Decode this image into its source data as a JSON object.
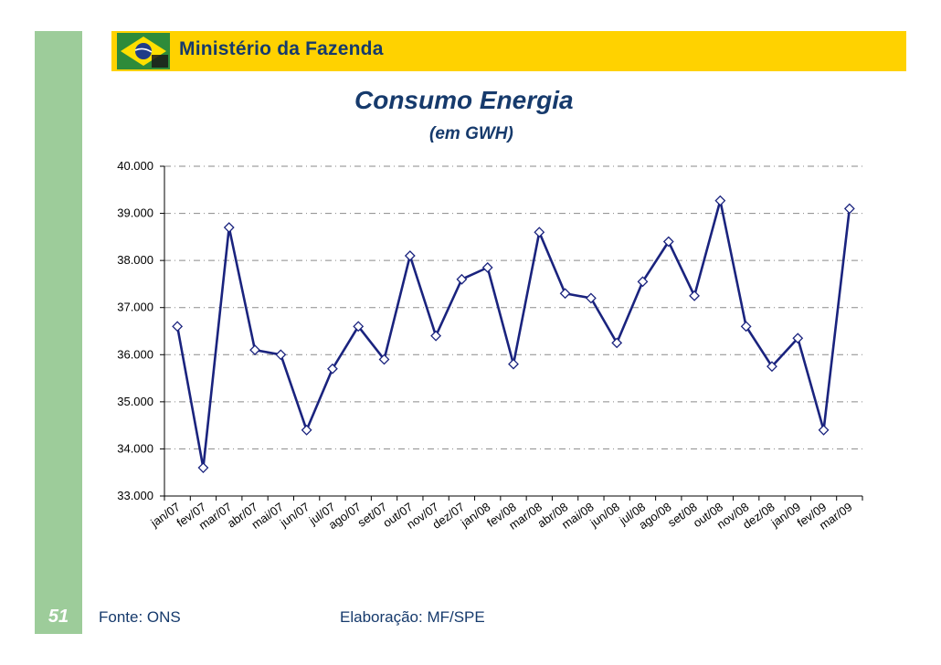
{
  "header": {
    "ministry": "Ministério da Fazenda"
  },
  "page": {
    "slide_number": "51",
    "source": "Fonte: ONS",
    "elaboration": "Elaboração: MF/SPE"
  },
  "colors": {
    "yellow": "#ffd200",
    "green": "#9dcc9a",
    "navy": "#163a6c",
    "line": "#1a237e"
  },
  "icons": {
    "logo": "brazil-flag-logo-icon"
  },
  "chart_data": {
    "type": "line",
    "title": "Consumo Energia",
    "subtitle": "(em GWH)",
    "xlabel": "",
    "ylabel": "",
    "ylim": [
      33000,
      40000
    ],
    "yticks": [
      33000,
      34000,
      35000,
      36000,
      37000,
      38000,
      39000,
      40000
    ],
    "ytick_labels": [
      "33.000",
      "34.000",
      "35.000",
      "36.000",
      "37.000",
      "38.000",
      "39.000",
      "40.000"
    ],
    "grid": true,
    "marker": "diamond",
    "categories": [
      "jan/07",
      "fev/07",
      "mar/07",
      "abr/07",
      "mai/07",
      "jun/07",
      "jul/07",
      "ago/07",
      "set/07",
      "out/07",
      "nov/07",
      "dez/07",
      "jan/08",
      "fev/08",
      "mar/08",
      "abr/08",
      "mai/08",
      "jun/08",
      "jul/08",
      "ago/08",
      "set/08",
      "out/08",
      "nov/08",
      "dez/08",
      "jan/09",
      "fev/09",
      "mar/09"
    ],
    "series": [
      {
        "name": "Consumo Energia",
        "values": [
          36600,
          33600,
          38700,
          36100,
          36000,
          34400,
          35700,
          36600,
          35900,
          38100,
          36400,
          37600,
          37850,
          35800,
          38600,
          37300,
          37200,
          36250,
          37550,
          38400,
          37250,
          39270,
          36600,
          35750,
          36350,
          34400,
          39100
        ]
      }
    ]
  }
}
